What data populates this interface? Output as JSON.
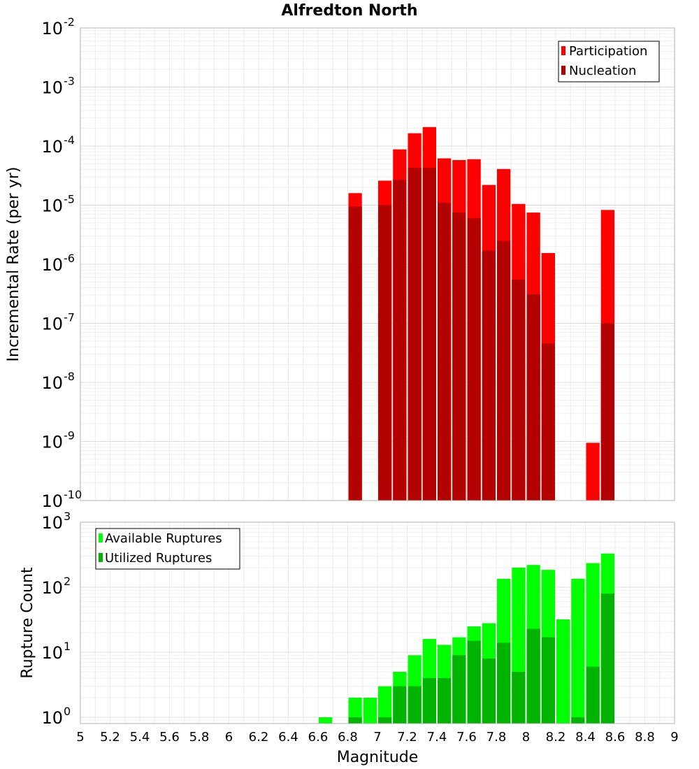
{
  "chart_data": [
    {
      "type": "bar",
      "title": "Alfredton North",
      "ylabel": "Incremental Rate (per yr)",
      "xlabel": "",
      "yscale": "log",
      "ylim": [
        1e-10,
        0.01
      ],
      "xlim": [
        5,
        9
      ],
      "bin_width": 0.1,
      "grid": true,
      "legend_position": "top-right",
      "y_ticks": [
        {
          "base": "10",
          "exp": "-10",
          "value": 1e-10
        },
        {
          "base": "10",
          "exp": "-9",
          "value": 1e-09
        },
        {
          "base": "10",
          "exp": "-8",
          "value": 1e-08
        },
        {
          "base": "10",
          "exp": "-7",
          "value": 1e-07
        },
        {
          "base": "10",
          "exp": "-6",
          "value": 1e-06
        },
        {
          "base": "10",
          "exp": "-5",
          "value": 1e-05
        },
        {
          "base": "10",
          "exp": "-4",
          "value": 0.0001
        },
        {
          "base": "10",
          "exp": "-3",
          "value": 0.001
        },
        {
          "base": "10",
          "exp": "-2",
          "value": 0.01
        }
      ],
      "series": [
        {
          "name": "Participation",
          "color": "#ff0000",
          "x": [
            6.85,
            7.05,
            7.15,
            7.25,
            7.35,
            7.45,
            7.55,
            7.65,
            7.75,
            7.85,
            7.95,
            8.05,
            8.15,
            8.45,
            8.55
          ],
          "values": [
            1.6e-05,
            2.6e-05,
            8.8e-05,
            0.000165,
            0.00021,
            6.2e-05,
            5.8e-05,
            6e-05,
            2.2e-05,
            4.1e-05,
            1.05e-05,
            7.5e-06,
            1.55e-06,
            9.5e-10,
            8.3e-06
          ]
        },
        {
          "name": "Nucleation",
          "color": "#b30000",
          "x": [
            6.85,
            7.05,
            7.15,
            7.25,
            7.35,
            7.45,
            7.55,
            7.65,
            7.75,
            7.85,
            7.95,
            8.05,
            8.15,
            8.55
          ],
          "values": [
            9.5e-06,
            1e-05,
            2.7e-05,
            4.3e-05,
            4.3e-05,
            1.1e-05,
            7.5e-06,
            6e-06,
            1.7e-06,
            2.5e-06,
            5.5e-07,
            3.1e-07,
            4.6e-08,
            1e-07
          ]
        }
      ]
    },
    {
      "type": "bar",
      "title": "",
      "ylabel": "Rupture Count",
      "xlabel": "Magnitude",
      "yscale": "log",
      "ylim": [
        0.8,
        1000
      ],
      "xlim": [
        5,
        9
      ],
      "bin_width": 0.1,
      "grid": true,
      "legend_position": "top-left",
      "x_ticks": [
        "5",
        "5.2",
        "5.4",
        "5.6",
        "5.8",
        "6",
        "6.2",
        "6.4",
        "6.6",
        "6.8",
        "7",
        "7.2",
        "7.4",
        "7.6",
        "7.8",
        "8",
        "8.2",
        "8.4",
        "8.6",
        "8.8",
        "9"
      ],
      "y_ticks": [
        {
          "base": "10",
          "exp": "0",
          "value": 1
        },
        {
          "base": "10",
          "exp": "1",
          "value": 10
        },
        {
          "base": "10",
          "exp": "2",
          "value": 100
        },
        {
          "base": "10",
          "exp": "3",
          "value": 1000
        }
      ],
      "series": [
        {
          "name": "Available Ruptures",
          "color": "#00ff00",
          "x": [
            6.65,
            6.85,
            6.95,
            7.05,
            7.15,
            7.25,
            7.35,
            7.45,
            7.55,
            7.65,
            7.75,
            7.85,
            7.95,
            8.05,
            8.15,
            8.25,
            8.35,
            8.45,
            8.55
          ],
          "values": [
            1,
            2,
            2,
            3,
            5,
            9,
            16,
            13,
            17,
            25,
            28,
            135,
            200,
            220,
            185,
            32,
            135,
            235,
            330
          ]
        },
        {
          "name": "Utilized Ruptures",
          "color": "#00b300",
          "x": [
            6.85,
            7.05,
            7.15,
            7.25,
            7.35,
            7.45,
            7.55,
            7.65,
            7.75,
            7.85,
            7.95,
            8.05,
            8.15,
            8.35,
            8.45,
            8.55
          ],
          "values": [
            1,
            1,
            3,
            3,
            4,
            4,
            9,
            15,
            8,
            14,
            5,
            23,
            17,
            1,
            6,
            80
          ]
        }
      ]
    }
  ]
}
